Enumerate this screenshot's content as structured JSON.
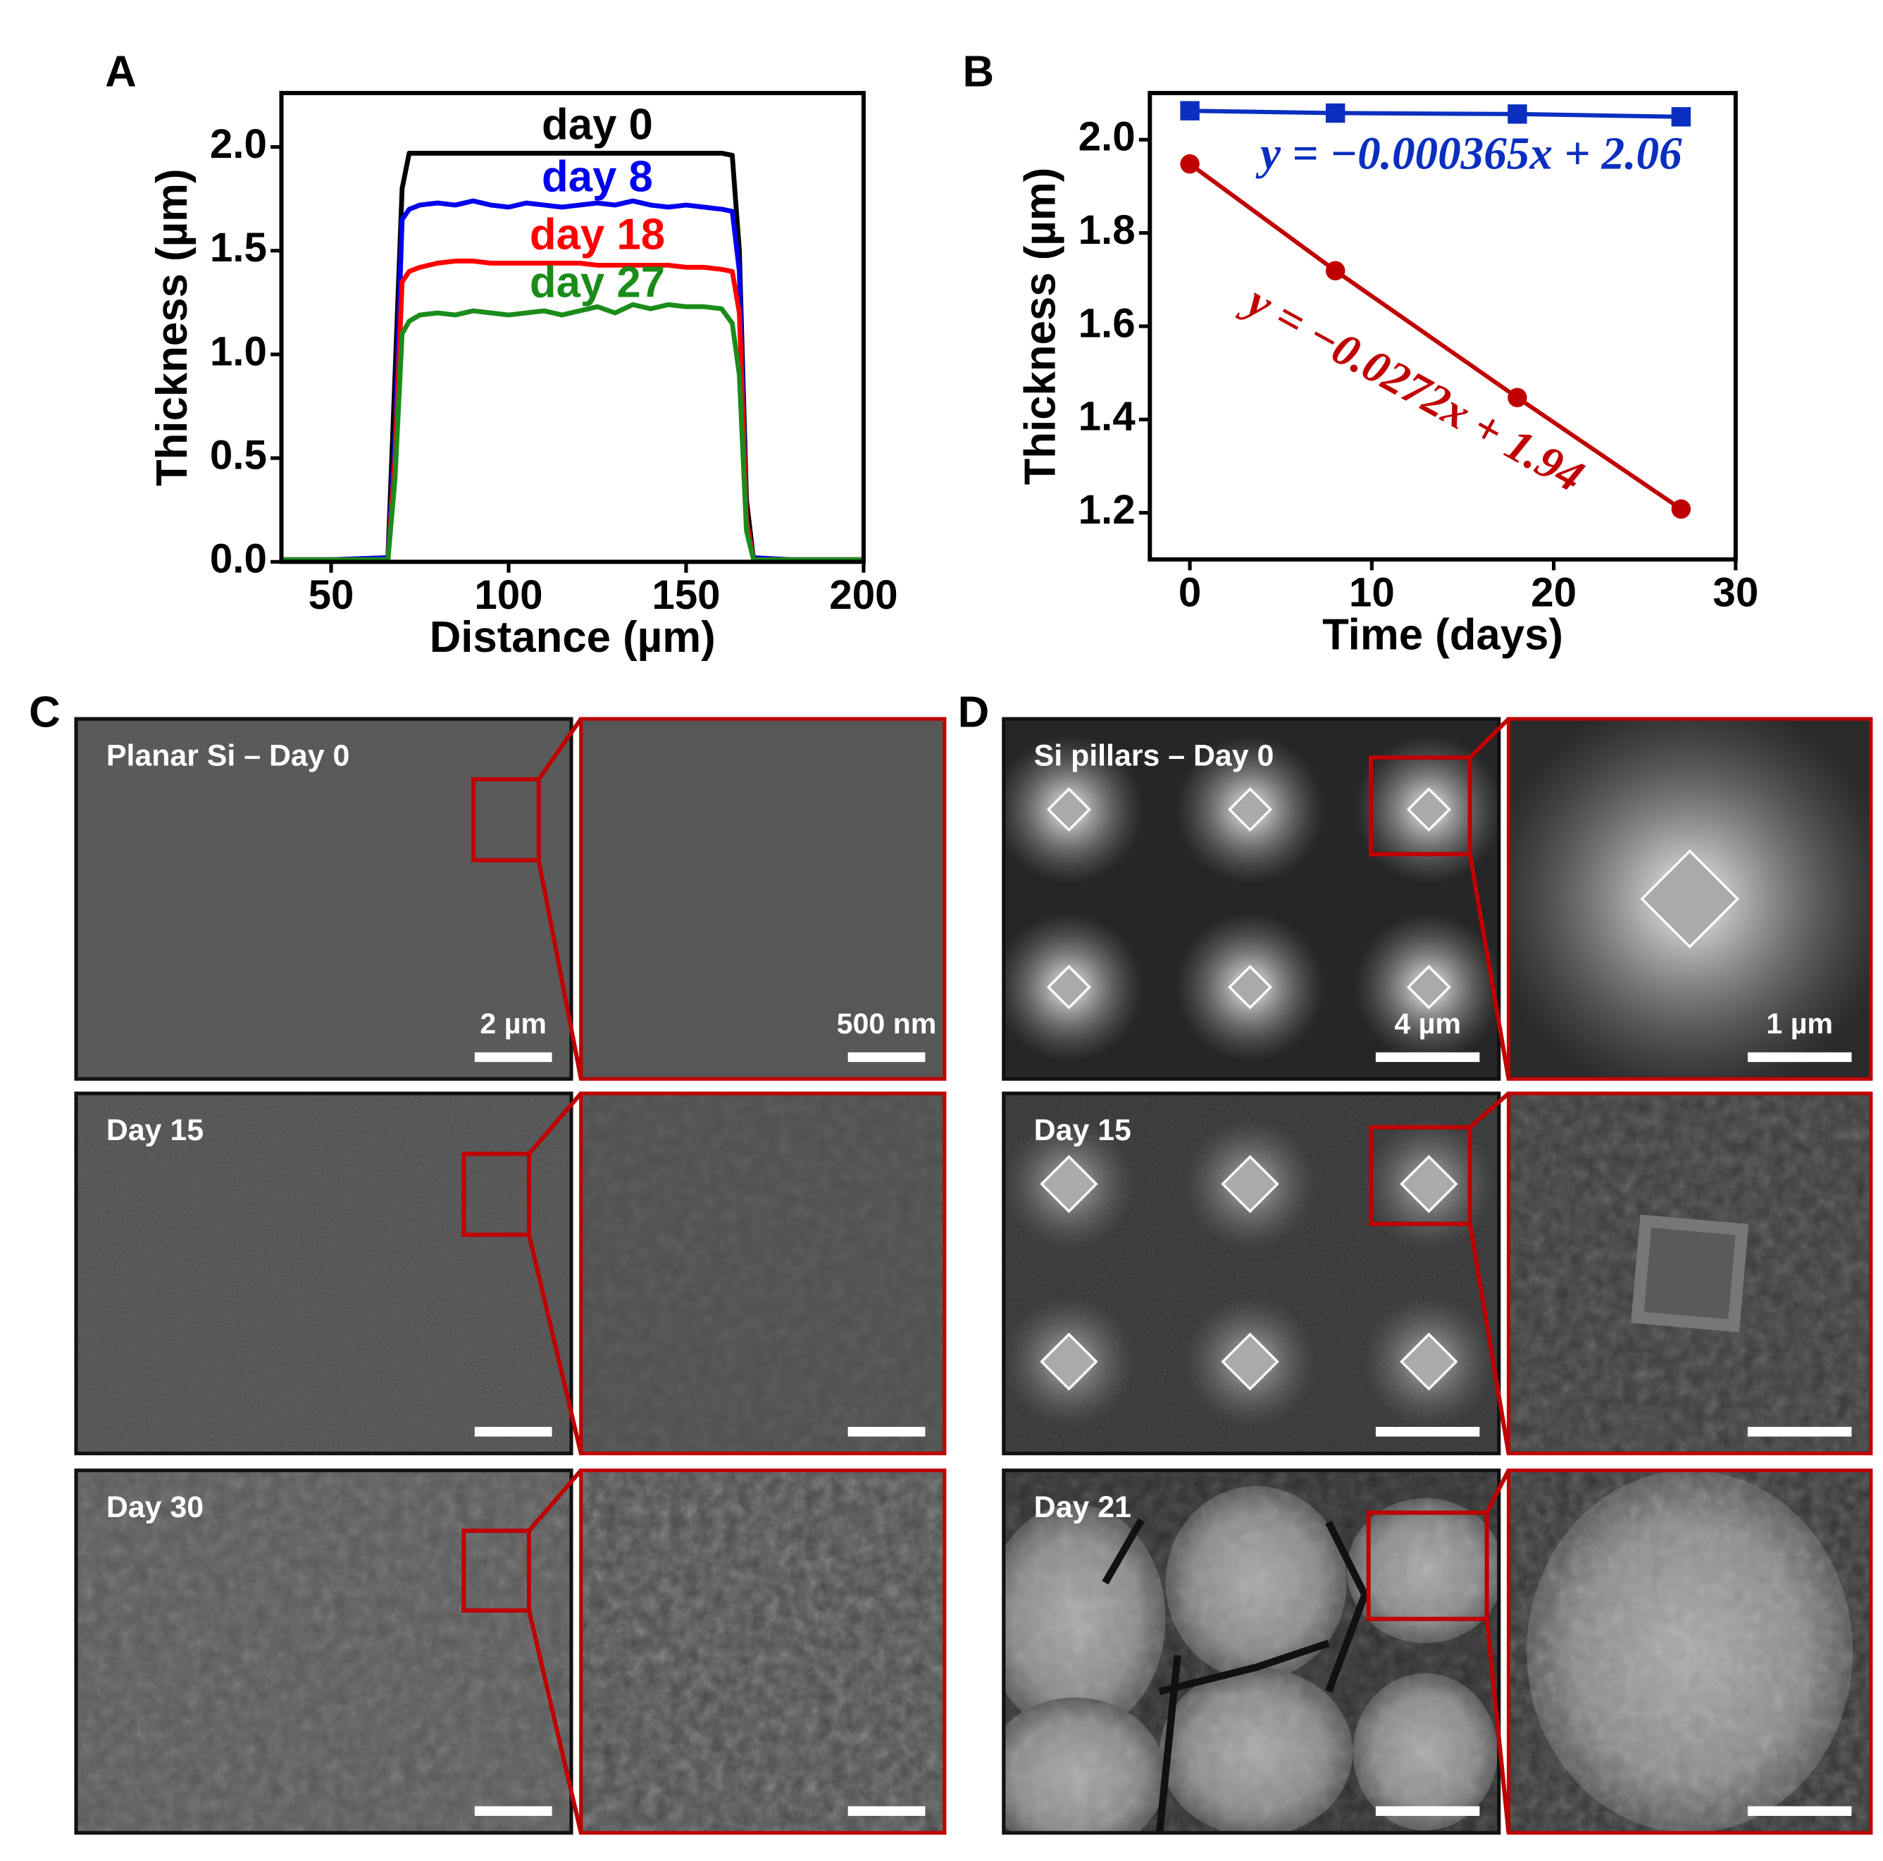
{
  "chart_data": [
    {
      "type": "line",
      "xlabel": "Distance (µm)",
      "ylabel": "Thickness (µm)",
      "xlim": [
        36,
        200
      ],
      "ylim": [
        0,
        2.26
      ],
      "xticks": [
        50,
        100,
        150,
        200
      ],
      "yticks": [
        {
          "value": 0,
          "label": "0.0"
        },
        0.5,
        {
          "value": 1,
          "label": "1.0"
        },
        1.5,
        {
          "value": 2,
          "label": "2.0"
        }
      ],
      "x": [
        36,
        50,
        66,
        68,
        70,
        72,
        75,
        80,
        85,
        90,
        95,
        100,
        105,
        110,
        115,
        120,
        125,
        130,
        135,
        140,
        145,
        150,
        155,
        160,
        163,
        165,
        167,
        169,
        180,
        200
      ],
      "series": [
        {
          "name": "day 0",
          "color": "#000000",
          "values": [
            0.01,
            0.01,
            0.02,
            0.9,
            1.8,
            1.97,
            1.97,
            1.97,
            1.97,
            1.97,
            1.97,
            1.97,
            1.97,
            1.97,
            1.97,
            1.97,
            1.97,
            1.97,
            1.97,
            1.97,
            1.97,
            1.97,
            1.97,
            1.97,
            1.96,
            1.5,
            0.3,
            0.01,
            0.01,
            0.01
          ]
        },
        {
          "name": "day 8",
          "color": "#0000ee",
          "values": [
            0.01,
            0.01,
            0.02,
            0.6,
            1.65,
            1.7,
            1.72,
            1.73,
            1.72,
            1.74,
            1.72,
            1.71,
            1.73,
            1.72,
            1.71,
            1.72,
            1.73,
            1.72,
            1.74,
            1.72,
            1.71,
            1.72,
            1.71,
            1.7,
            1.69,
            1.4,
            0.2,
            0.02,
            0.01,
            0.01
          ]
        },
        {
          "name": "day 18",
          "color": "#ff0000",
          "values": [
            0.01,
            0.01,
            0.01,
            0.5,
            1.35,
            1.4,
            1.42,
            1.44,
            1.45,
            1.45,
            1.44,
            1.44,
            1.44,
            1.44,
            1.44,
            1.44,
            1.43,
            1.43,
            1.43,
            1.43,
            1.43,
            1.42,
            1.42,
            1.41,
            1.4,
            1.2,
            0.2,
            0.01,
            0.01,
            0.01
          ]
        },
        {
          "name": "day 27",
          "color": "#1a8c1a",
          "values": [
            0.01,
            0.01,
            0.01,
            0.4,
            1.1,
            1.16,
            1.19,
            1.2,
            1.19,
            1.21,
            1.2,
            1.19,
            1.2,
            1.21,
            1.19,
            1.21,
            1.23,
            1.2,
            1.24,
            1.22,
            1.24,
            1.23,
            1.23,
            1.22,
            1.15,
            0.9,
            0.15,
            0.01,
            0.01,
            0.01
          ]
        }
      ]
    },
    {
      "type": "line",
      "xlabel": "Time (days)",
      "ylabel": "Thickness (µm)",
      "xlim": [
        -2.2,
        30
      ],
      "ylim": [
        1.1,
        2.1
      ],
      "xticks": [
        0,
        10,
        20,
        30
      ],
      "yticks": [
        1.2,
        1.4,
        1.6,
        1.8,
        {
          "value": 2,
          "label": "2.0"
        }
      ],
      "x": [
        0,
        8,
        18,
        27
      ],
      "series": [
        {
          "color": "#0a2fc0",
          "marker": "square",
          "values": [
            2.062,
            2.057,
            2.055,
            2.049
          ]
        },
        {
          "color": "#c00000",
          "marker": "circle",
          "values": [
            1.948,
            1.719,
            1.447,
            1.208
          ],
          "errors": [
            0.005,
            0.008,
            0.02,
            0.008
          ]
        }
      ],
      "annotations": [
        {
          "text": "y = −0.000365x + 2.06",
          "color": "#0a2fc0"
        },
        {
          "text": "y = −0.0272x + 1.94",
          "color": "#c00000"
        }
      ]
    }
  ],
  "panel_labels": [
    "A",
    "B",
    "C",
    "D"
  ],
  "images": {
    "C": [
      {
        "label": "Planar Si – Day 0",
        "scale_bar": "2 µm",
        "zoom_scale_bar": "500 nm"
      },
      {
        "label": "Day 15"
      },
      {
        "label": "Day 30"
      }
    ],
    "D": [
      {
        "label": "Si pillars – Day 0",
        "scale_bar": "4 µm",
        "zoom_scale_bar": "1 µm"
      },
      {
        "label": "Day 15"
      },
      {
        "label": "Day 21"
      }
    ]
  }
}
